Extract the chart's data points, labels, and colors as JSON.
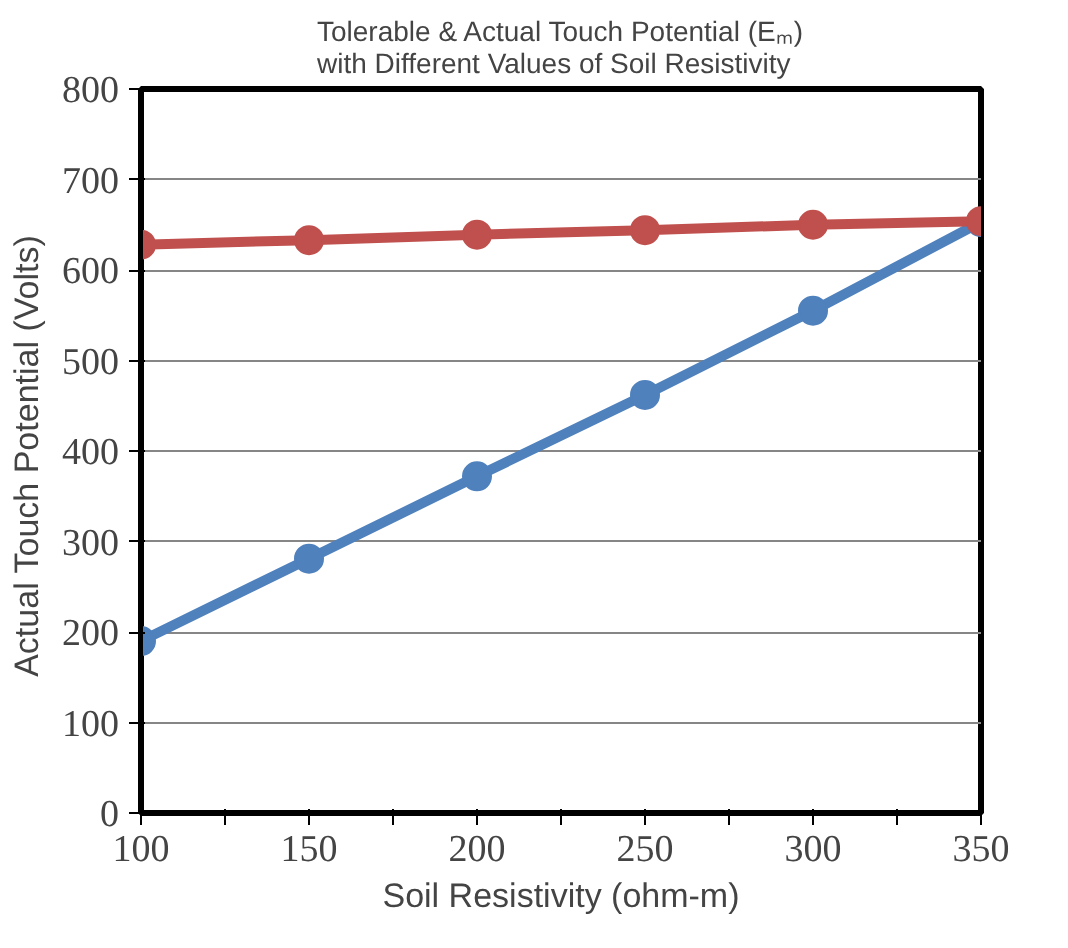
{
  "chart_data": {
    "type": "line",
    "title": "Tolerable & Actual Touch Potential (Eₘ)\nwith Different Values of Soil Resistivity",
    "xlabel": "Soil Resistivity (ohm-m)",
    "ylabel": "Actual Touch  Potential (Volts)",
    "x": [
      100,
      150,
      200,
      250,
      300,
      350
    ],
    "series": [
      {
        "color": "#4f81bd",
        "values": [
          190,
          281,
          372,
          462,
          555,
          653
        ]
      },
      {
        "color": "#c0504d",
        "values": [
          628,
          633,
          639,
          644,
          650,
          654
        ]
      }
    ],
    "xlim": [
      100,
      350
    ],
    "ylim": [
      0,
      800
    ],
    "xticks": [
      100,
      {
        "value": 125,
        "label": null
      },
      150,
      {
        "value": 175,
        "label": null
      },
      200,
      {
        "value": 225,
        "label": null
      },
      250,
      {
        "value": 275,
        "label": null
      },
      300,
      {
        "value": 325,
        "label": null
      },
      350
    ],
    "yticks": [
      0,
      100,
      200,
      300,
      400,
      500,
      600,
      700,
      800
    ],
    "grid": "y",
    "marker": "circle",
    "line_style": "solid"
  }
}
